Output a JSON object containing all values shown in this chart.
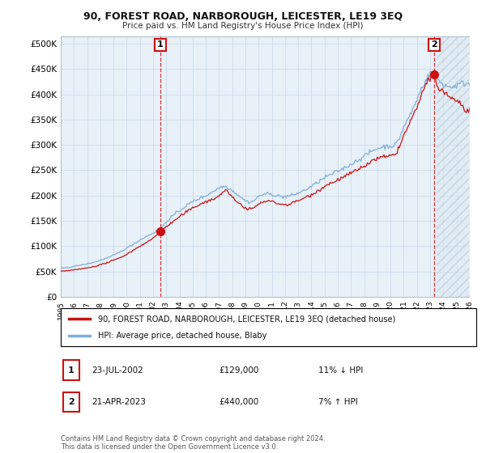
{
  "title": "90, FOREST ROAD, NARBOROUGH, LEICESTER, LE19 3EQ",
  "subtitle": "Price paid vs. HM Land Registry's House Price Index (HPI)",
  "ytick_values": [
    0,
    50000,
    100000,
    150000,
    200000,
    250000,
    300000,
    350000,
    400000,
    450000,
    500000
  ],
  "ylim": [
    0,
    515000
  ],
  "xlim_start": 1995.0,
  "xlim_end": 2026.5,
  "hpi_color": "#7fb0d8",
  "price_color": "#cc1111",
  "plot_bg_color": "#e8f0f8",
  "marker1_year": 2002.55,
  "marker1_price": 129000,
  "marker1_label": "1",
  "marker1_date": "23-JUL-2002",
  "marker1_price_str": "£129,000",
  "marker1_pct": "11% ↓ HPI",
  "marker2_year": 2023.3,
  "marker2_price": 440000,
  "marker2_label": "2",
  "marker2_date": "21-APR-2023",
  "marker2_price_str": "£440,000",
  "marker2_pct": "7% ↑ HPI",
  "legend_line1": "90, FOREST ROAD, NARBOROUGH, LEICESTER, LE19 3EQ (detached house)",
  "legend_line2": "HPI: Average price, detached house, Blaby",
  "footnote": "Contains HM Land Registry data © Crown copyright and database right 2024.\nThis data is licensed under the Open Government Licence v3.0.",
  "xtick_years": [
    1995,
    1996,
    1997,
    1998,
    1999,
    2000,
    2001,
    2002,
    2003,
    2004,
    2005,
    2006,
    2007,
    2008,
    2009,
    2010,
    2011,
    2012,
    2013,
    2014,
    2015,
    2016,
    2017,
    2018,
    2019,
    2020,
    2021,
    2022,
    2023,
    2024,
    2025,
    2026
  ],
  "background_color": "#ffffff",
  "grid_color": "#c8d8e8",
  "hatch_color": "#c8d8e8"
}
